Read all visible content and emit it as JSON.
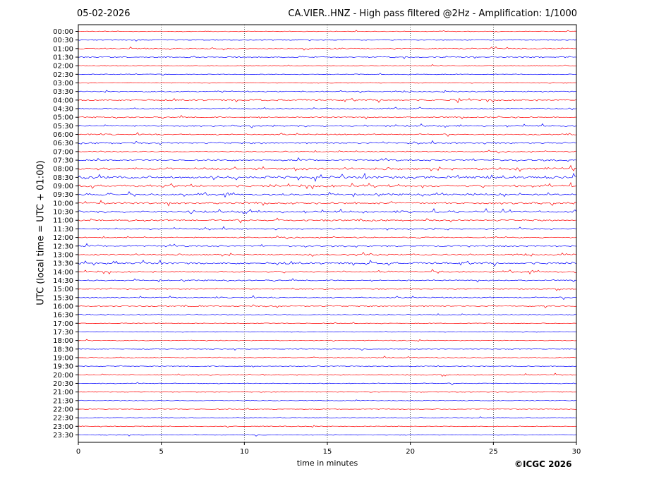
{
  "header": {
    "date": "05-02-2026",
    "title": "CA.VIER..HNZ - High pass filtered @2Hz - Amplification: 1/1000"
  },
  "footer": {
    "copyright": "©ICGC 2026"
  },
  "colors": {
    "red": "#ff0000",
    "blue": "#0000ff",
    "axis": "#000000"
  },
  "chart_data": {
    "type": "line",
    "title": "CA.VIER..HNZ - High pass filtered @2Hz - Amplification: 1/1000",
    "xlabel": "time in minutes",
    "ylabel": "UTC (local time = UTC + 01:00)",
    "xlim": [
      0,
      30
    ],
    "x_ticks": [
      "0",
      "5",
      "10",
      "15",
      "20",
      "25",
      "30"
    ],
    "x_gridlines": [
      5,
      10,
      15,
      20,
      25
    ],
    "grid": "vertical dotted",
    "rows": [
      "00:00",
      "00:30",
      "01:00",
      "01:30",
      "02:00",
      "02:30",
      "03:00",
      "03:30",
      "04:00",
      "04:30",
      "05:00",
      "05:30",
      "06:00",
      "06:30",
      "07:00",
      "07:30",
      "08:00",
      "08:30",
      "09:00",
      "09:30",
      "10:00",
      "10:30",
      "11:00",
      "11:30",
      "12:00",
      "12:30",
      "13:00",
      "13:30",
      "14:00",
      "14:30",
      "15:00",
      "15:30",
      "16:00",
      "16:30",
      "17:00",
      "17:30",
      "18:00",
      "18:30",
      "19:00",
      "19:30",
      "20:00",
      "20:30",
      "21:00",
      "21:30",
      "22:00",
      "22:30",
      "23:00",
      "23:30"
    ],
    "row_colors": "alternating red (on the hour) and blue (half past)",
    "activity": [
      1,
      1,
      2,
      2,
      1,
      1,
      1,
      2,
      3,
      2,
      2,
      3,
      2,
      3,
      2,
      3,
      5,
      6,
      5,
      4,
      4,
      4,
      3,
      3,
      2,
      3,
      3,
      4,
      3,
      2,
      2,
      2,
      2,
      2,
      1,
      1,
      1,
      1,
      1,
      1,
      2,
      1,
      1,
      1,
      1,
      1,
      1,
      1
    ]
  }
}
